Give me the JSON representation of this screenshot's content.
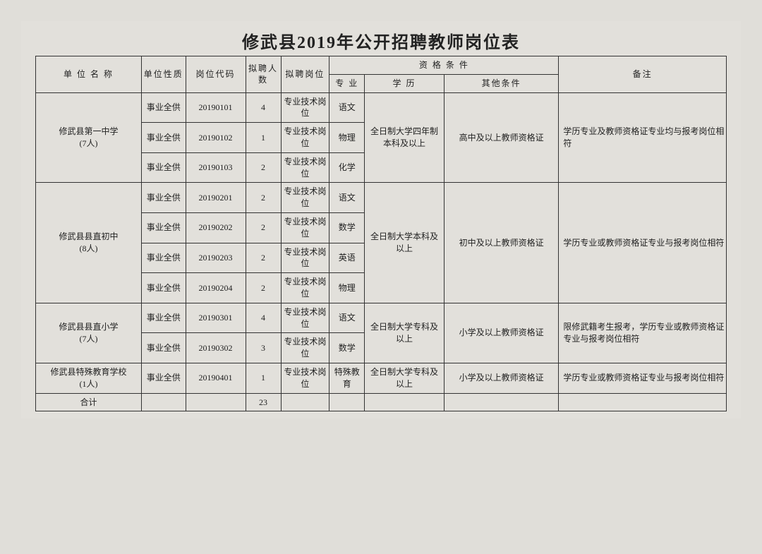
{
  "title": "修武县2019年公开招聘教师岗位表",
  "headers": {
    "unit": "单 位 名 称",
    "nature": "单位性质",
    "code": "岗位代码",
    "count": "拟聘人数",
    "post": "拟聘岗位",
    "qual_group": "资 格 条 件",
    "major": "专 业",
    "edu": "学 历",
    "other": "其他条件",
    "remark": "备注"
  },
  "nature_label": "事业全供",
  "post_label": "专业技术岗位",
  "groups": [
    {
      "unit": "修武县第一中学\n(7人)",
      "edu": "全日制大学四年制本科及以上",
      "other": "高中及以上教师资格证",
      "remark": "学历专业及教师资格证专业均与报考岗位相符",
      "rows": [
        {
          "code": "20190101",
          "count": "4",
          "major": "语文"
        },
        {
          "code": "20190102",
          "count": "1",
          "major": "物理"
        },
        {
          "code": "20190103",
          "count": "2",
          "major": "化学"
        }
      ]
    },
    {
      "unit": "修武县县直初中\n(8人)",
      "edu": "全日制大学本科及以上",
      "other": "初中及以上教师资格证",
      "remark": "学历专业或教师资格证专业与报考岗位相符",
      "rows": [
        {
          "code": "20190201",
          "count": "2",
          "major": "语文"
        },
        {
          "code": "20190202",
          "count": "2",
          "major": "数学"
        },
        {
          "code": "20190203",
          "count": "2",
          "major": "英语"
        },
        {
          "code": "20190204",
          "count": "2",
          "major": "物理"
        }
      ]
    },
    {
      "unit": "修武县县直小学\n(7人)",
      "edu": "全日制大学专科及以上",
      "other": "小学及以上教师资格证",
      "remark": "限修武籍考生报考，学历专业或教师资格证专业与报考岗位相符",
      "rows": [
        {
          "code": "20190301",
          "count": "4",
          "major": "语文"
        },
        {
          "code": "20190302",
          "count": "3",
          "major": "数学"
        }
      ]
    },
    {
      "unit": "修武县特殊教育学校\n(1人)",
      "edu": "全日制大学专科及以上",
      "other": "小学及以上教师资格证",
      "remark": "学历专业或教师资格证专业与报考岗位相符",
      "rows": [
        {
          "code": "20190401",
          "count": "1",
          "major": "特殊教育"
        }
      ]
    }
  ],
  "total": {
    "label": "合计",
    "count": "23"
  }
}
